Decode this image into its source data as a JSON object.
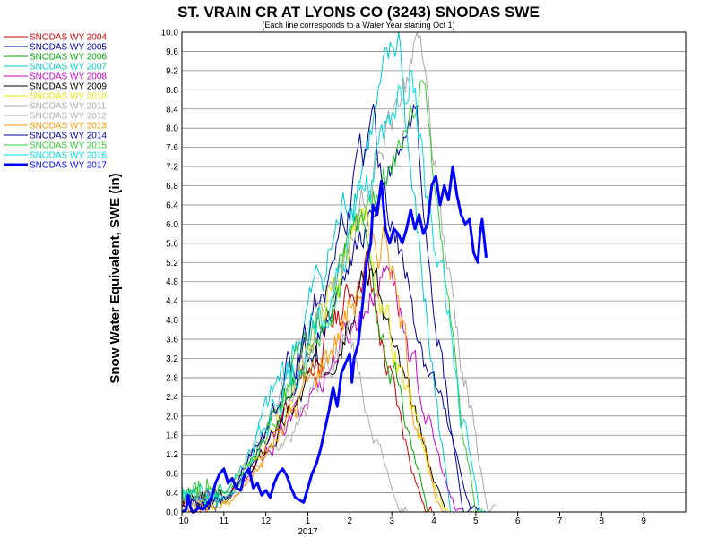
{
  "chart_data": {
    "type": "line",
    "title": "ST. VRAIN CR AT LYONS CO (3243) SNODAS SWE",
    "subtitle": "(Each line corresponds to a Water Year starting Oct 1)",
    "ylabel": "Snow Water Equivalent, SWE (in)",
    "xlabel": "",
    "ylim": [
      0,
      10
    ],
    "yticks": [
      "0.0",
      "0.4",
      "0.8",
      "1.2",
      "1.6",
      "2.0",
      "2.4",
      "2.8",
      "3.2",
      "3.6",
      "4.0",
      "4.4",
      "4.8",
      "5.2",
      "5.6",
      "6.0",
      "6.4",
      "6.8",
      "7.2",
      "7.6",
      "8.0",
      "8.4",
      "8.8",
      "9.2",
      "9.6",
      "10.0"
    ],
    "xticks": [
      "10",
      "11",
      "12",
      "1",
      "2",
      "3",
      "4",
      "5",
      "6",
      "7",
      "8",
      "9"
    ],
    "x_year_label": "2017",
    "grid": "horizontal",
    "legend_position": "left",
    "series": [
      {
        "name": "SNODAS WY 2004",
        "color": "#cc0000",
        "width": 1,
        "peak_month": 4.4,
        "peak": 5.3,
        "melt_out": 5.8,
        "start": 0.3,
        "wiggle": 0.35,
        "seed": 11
      },
      {
        "name": "SNODAS WY 2005",
        "color": "#0000aa",
        "width": 1,
        "peak_month": 5.6,
        "peak": 8.6,
        "melt_out": 6.7,
        "start": 0.2,
        "wiggle": 0.3,
        "seed": 23
      },
      {
        "name": "SNODAS WY 2006",
        "color": "#00aa00",
        "width": 1,
        "peak_month": 4.3,
        "peak": 6.2,
        "melt_out": 5.9,
        "start": 0.3,
        "wiggle": 0.35,
        "seed": 37
      },
      {
        "name": "SNODAS WY 2007",
        "color": "#00cccc",
        "width": 1,
        "peak_month": 5.2,
        "peak": 9.9,
        "melt_out": 6.4,
        "start": 0.4,
        "wiggle": 0.4,
        "seed": 41
      },
      {
        "name": "SNODAS WY 2008",
        "color": "#cc00cc",
        "width": 1,
        "peak_month": 5.0,
        "peak": 5.3,
        "melt_out": 6.5,
        "start": 0.3,
        "wiggle": 0.3,
        "seed": 53
      },
      {
        "name": "SNODAS WY 2009",
        "color": "#000000",
        "width": 1,
        "peak_month": 4.6,
        "peak": 5.2,
        "melt_out": 6.3,
        "start": 0.3,
        "wiggle": 0.3,
        "seed": 67
      },
      {
        "name": "SNODAS WY 2010",
        "color": "#e6e600",
        "width": 1,
        "peak_month": 4.4,
        "peak": 6.3,
        "melt_out": 6.2,
        "start": 0.2,
        "wiggle": 0.35,
        "seed": 71
      },
      {
        "name": "SNODAS WY 2011",
        "color": "#aaaaaa",
        "width": 1,
        "peak_month": 5.7,
        "peak": 9.9,
        "melt_out": 7.3,
        "start": 0.3,
        "wiggle": 0.35,
        "seed": 83
      },
      {
        "name": "SNODAS WY 2012",
        "color": "#b0b0b0",
        "width": 1,
        "peak_month": 4.0,
        "peak": 3.8,
        "melt_out": 5.2,
        "start": 0.2,
        "wiggle": 0.3,
        "seed": 97
      },
      {
        "name": "SNODAS WY 2013",
        "color": "#ff9900",
        "width": 1,
        "peak_month": 4.9,
        "peak": 6.0,
        "melt_out": 6.1,
        "start": 0.1,
        "wiggle": 0.4,
        "seed": 101
      },
      {
        "name": "SNODAS WY 2014",
        "color": "#000099",
        "width": 1,
        "peak_month": 4.6,
        "peak": 8.0,
        "melt_out": 6.9,
        "start": 0.2,
        "wiggle": 0.35,
        "seed": 113
      },
      {
        "name": "SNODAS WY 2015",
        "color": "#33cc33",
        "width": 1,
        "peak_month": 5.8,
        "peak": 9.2,
        "melt_out": 7.0,
        "start": 0.4,
        "wiggle": 0.35,
        "seed": 127
      },
      {
        "name": "SNODAS WY 2016",
        "color": "#00dddd",
        "width": 1,
        "peak_month": 5.5,
        "peak": 9.4,
        "melt_out": 7.1,
        "start": 0.3,
        "wiggle": 0.4,
        "seed": 131
      }
    ],
    "current": {
      "name": "SNODAS WY 2017",
      "color": "#0000ff",
      "width": 3,
      "points": [
        [
          0.0,
          0.0
        ],
        [
          0.1,
          0.05
        ],
        [
          0.15,
          0.35
        ],
        [
          0.2,
          0.1
        ],
        [
          0.25,
          0.0
        ],
        [
          0.3,
          0.0
        ],
        [
          0.4,
          0.1
        ],
        [
          0.5,
          0.05
        ],
        [
          0.6,
          0.15
        ],
        [
          0.7,
          0.3
        ],
        [
          0.8,
          0.6
        ],
        [
          0.9,
          0.8
        ],
        [
          1.0,
          0.9
        ],
        [
          1.1,
          0.6
        ],
        [
          1.2,
          0.7
        ],
        [
          1.3,
          0.5
        ],
        [
          1.4,
          0.45
        ],
        [
          1.5,
          0.8
        ],
        [
          1.6,
          0.9
        ],
        [
          1.7,
          0.5
        ],
        [
          1.8,
          0.6
        ],
        [
          1.9,
          0.35
        ],
        [
          2.0,
          0.45
        ],
        [
          2.1,
          0.3
        ],
        [
          2.2,
          0.6
        ],
        [
          2.3,
          0.8
        ],
        [
          2.4,
          0.9
        ],
        [
          2.5,
          0.75
        ],
        [
          2.6,
          0.5
        ],
        [
          2.7,
          0.3
        ],
        [
          2.8,
          0.25
        ],
        [
          2.9,
          0.2
        ],
        [
          3.0,
          0.5
        ],
        [
          3.1,
          0.8
        ],
        [
          3.2,
          1.0
        ],
        [
          3.3,
          1.3
        ],
        [
          3.4,
          1.7
        ],
        [
          3.5,
          2.1
        ],
        [
          3.6,
          2.6
        ],
        [
          3.7,
          2.2
        ],
        [
          3.8,
          2.9
        ],
        [
          3.9,
          3.1
        ],
        [
          4.0,
          3.3
        ],
        [
          4.05,
          2.7
        ],
        [
          4.1,
          3.2
        ],
        [
          4.2,
          3.5
        ],
        [
          4.3,
          4.3
        ],
        [
          4.4,
          5.2
        ],
        [
          4.5,
          5.6
        ],
        [
          4.55,
          6.4
        ],
        [
          4.65,
          6.2
        ],
        [
          4.75,
          6.9
        ],
        [
          4.85,
          5.9
        ],
        [
          4.95,
          5.6
        ],
        [
          5.05,
          5.9
        ],
        [
          5.15,
          5.8
        ],
        [
          5.25,
          5.6
        ],
        [
          5.35,
          5.9
        ],
        [
          5.45,
          6.3
        ],
        [
          5.55,
          5.9
        ],
        [
          5.65,
          6.2
        ],
        [
          5.75,
          5.8
        ],
        [
          5.85,
          6.0
        ],
        [
          5.95,
          6.8
        ],
        [
          6.05,
          7.0
        ],
        [
          6.15,
          6.4
        ],
        [
          6.25,
          6.8
        ],
        [
          6.35,
          6.5
        ],
        [
          6.45,
          7.2
        ],
        [
          6.55,
          6.6
        ],
        [
          6.65,
          6.2
        ],
        [
          6.75,
          6.0
        ],
        [
          6.85,
          6.1
        ],
        [
          6.95,
          5.4
        ],
        [
          7.05,
          5.2
        ],
        [
          7.1,
          5.8
        ],
        [
          7.15,
          6.1
        ],
        [
          7.2,
          5.7
        ],
        [
          7.25,
          5.3
        ]
      ]
    }
  }
}
